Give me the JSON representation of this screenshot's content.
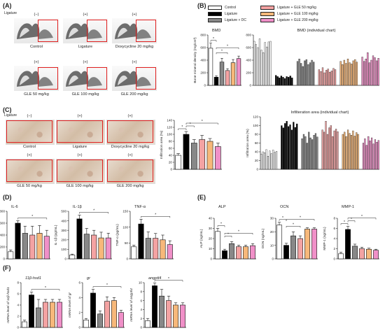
{
  "panels": {
    "A": {
      "letter": "(A)",
      "ligature_label": "Ligature",
      "row1": [
        {
          "sign": "(−)",
          "name": "Control"
        },
        {
          "sign": "(+)",
          "name": "Ligature"
        },
        {
          "sign": "(+)",
          "name": "Doxycycline 20 mg/kg"
        }
      ],
      "row2": [
        {
          "sign": "(+)",
          "name": "GLE 50 mg/kg"
        },
        {
          "sign": "(+)",
          "name": "GLE 100 mg/kg"
        },
        {
          "sign": "(+)",
          "name": "GLE 200 mg/kg"
        }
      ]
    },
    "B": {
      "letter": "(B)",
      "legend": [
        {
          "label": "Control",
          "color": "#ffffff"
        },
        {
          "label": "Ligature",
          "color": "#000000"
        },
        {
          "label": "Ligature + DC",
          "color": "#888888"
        },
        {
          "label": "Ligature + GLE 50 mg/kg",
          "color": "#f4a3a3"
        },
        {
          "label": "Ligature + GLE 100 mg/kg",
          "color": "#f7b87a"
        },
        {
          "label": "Ligature + GLE 200 mg/kg",
          "color": "#f090c8"
        }
      ]
    },
    "C": {
      "letter": "(C)",
      "ligature_label": "Ligature",
      "row1": [
        {
          "sign": "(−)",
          "name": "Control"
        },
        {
          "sign": "(+)",
          "name": "Ligature"
        },
        {
          "sign": "(+)",
          "name": "Doxycycline 20 mg/kg"
        }
      ],
      "row2": [
        {
          "sign": "(+)",
          "name": "GLE 50 mg/kg"
        },
        {
          "sign": "(+)",
          "name": "GLE 100 mg/kg"
        },
        {
          "sign": "(+)",
          "name": "GLE 200 mg/kg"
        }
      ]
    },
    "D": {
      "letter": "(D)"
    },
    "E": {
      "letter": "(E)"
    },
    "F": {
      "letter": "(F)"
    }
  },
  "colors": [
    "#ffffff",
    "#000000",
    "#888888",
    "#f4a3a3",
    "#f7b87a",
    "#f090c8"
  ],
  "chart_data": [
    {
      "id": "bmd",
      "type": "bar",
      "title": "BMD",
      "ylabel": "Bone mineral density (mg/cm³)",
      "ylim": [
        0,
        800
      ],
      "ticks": [
        0,
        200,
        400,
        600,
        800
      ],
      "values": [
        590,
        130,
        370,
        235,
        360,
        425
      ],
      "errors": [
        80,
        20,
        60,
        30,
        50,
        40
      ],
      "sig": [
        [
          0,
          1,
          "*"
        ],
        [
          1,
          3,
          "*"
        ],
        [
          1,
          5,
          "*"
        ]
      ]
    },
    {
      "id": "bmd_ind",
      "type": "bar",
      "title": "BMD (individual chart)",
      "ylim": [
        0,
        800
      ],
      "ticks": [
        0,
        200,
        400,
        600,
        800
      ],
      "groups": [
        [
          700,
          650,
          600,
          740,
          560,
          520,
          680,
          610,
          690,
          700
        ],
        [
          160,
          140,
          120,
          150,
          130,
          110,
          140,
          130,
          150,
          120
        ],
        [
          380,
          420,
          350,
          300,
          390,
          410,
          330,
          360,
          400,
          370
        ],
        [
          250,
          220,
          280,
          200,
          240,
          260,
          210,
          230,
          270,
          250
        ],
        [
          380,
          330,
          400,
          350,
          420,
          360,
          340,
          390,
          410,
          370
        ],
        [
          450,
          380,
          420,
          520,
          360,
          400,
          470,
          440,
          390,
          430
        ]
      ]
    },
    {
      "id": "infil",
      "type": "bar",
      "ylabel": "Infiltration area (%)",
      "ylim": [
        0,
        140
      ],
      "ticks": [
        0,
        20,
        40,
        60,
        80,
        100,
        120,
        140
      ],
      "values": [
        40,
        100,
        75,
        85,
        80,
        65
      ],
      "errors": [
        5,
        8,
        10,
        12,
        8,
        10
      ],
      "sig": [
        [
          0,
          1,
          "*"
        ],
        [
          1,
          2,
          "*"
        ],
        [
          1,
          5,
          "*"
        ]
      ]
    },
    {
      "id": "infil_ind",
      "type": "bar",
      "title": "Infilteration area (individual chart)",
      "ylim": [
        0,
        120
      ],
      "ticks": [
        0,
        20,
        40,
        60,
        80,
        100,
        120
      ],
      "groups": [
        [
          35,
          40,
          38,
          45,
          30,
          42,
          36,
          44,
          39,
          41
        ],
        [
          100,
          95,
          105,
          110,
          98,
          102,
          90,
          108,
          96,
          104
        ],
        [
          70,
          80,
          75,
          60,
          85,
          72,
          68,
          78,
          82,
          74
        ],
        [
          90,
          85,
          110,
          80,
          95,
          100,
          75,
          88,
          92,
          86
        ],
        [
          80,
          85,
          75,
          90,
          82,
          78,
          88,
          76,
          84,
          80
        ],
        [
          60,
          70,
          55,
          75,
          65,
          72,
          58,
          68,
          62,
          66
        ]
      ]
    },
    {
      "id": "il6",
      "type": "bar",
      "title": "IL-6",
      "ylabel": "IL-6 (pg/mL)",
      "ylim": [
        0,
        800
      ],
      "ticks": [
        0,
        200,
        400,
        600,
        800
      ],
      "values": [
        120,
        600,
        430,
        400,
        430,
        380
      ],
      "errors": [
        30,
        40,
        120,
        150,
        130,
        100
      ],
      "sig": [
        [
          1,
          5,
          "*"
        ]
      ]
    },
    {
      "id": "il1b",
      "type": "bar",
      "title": "IL-1β",
      "ylabel": "IL-1β (pg/mL)",
      "ylim": [
        0,
        500
      ],
      "ticks": [
        0,
        100,
        200,
        300,
        400,
        500
      ],
      "values": [
        40,
        420,
        260,
        250,
        220,
        220
      ],
      "errors": [
        10,
        40,
        60,
        50,
        60,
        50
      ],
      "sig": [
        [
          1,
          5,
          "*"
        ]
      ]
    },
    {
      "id": "tnfa",
      "type": "bar",
      "title": "TNF-α",
      "ylabel": "TNF-α (pg/mL)",
      "ylim": [
        0,
        150
      ],
      "ticks": [
        0,
        50,
        100,
        150
      ],
      "values": [
        38,
        110,
        65,
        65,
        60,
        45
      ],
      "errors": [
        5,
        15,
        20,
        15,
        15,
        12
      ],
      "sig": [
        [
          1,
          5,
          "*"
        ]
      ]
    },
    {
      "id": "alp",
      "type": "bar",
      "title": "ALP",
      "ylabel": "ALP (ng/mL)",
      "ylim": [
        0,
        40
      ],
      "ticks": [
        0,
        10,
        20,
        30,
        40
      ],
      "values": [
        27,
        8,
        15,
        12,
        12,
        13
      ],
      "errors": [
        3,
        1.5,
        2,
        1.5,
        1.5,
        2
      ],
      "sig": [
        [
          0,
          1,
          "*"
        ],
        [
          1,
          2,
          "*"
        ],
        [
          1,
          5,
          "*"
        ]
      ]
    },
    {
      "id": "ocn",
      "type": "bar",
      "title": "OCN",
      "ylabel": "OCN (ng/mL)",
      "ylim": [
        0,
        30
      ],
      "ticks": [
        0,
        10,
        20,
        30
      ],
      "values": [
        25,
        10,
        17,
        15,
        22,
        22
      ],
      "errors": [
        2,
        1.5,
        3,
        2,
        1,
        1
      ],
      "sig": [
        [
          0,
          1,
          "*"
        ],
        [
          1,
          3,
          "*"
        ],
        [
          1,
          5,
          "*"
        ]
      ]
    },
    {
      "id": "mmp1",
      "type": "bar",
      "title": "MMP-1",
      "ylabel": "MMP-1 (ng/mL)",
      "ylim": [
        0,
        8
      ],
      "ticks": [
        0,
        2,
        4,
        6,
        8
      ],
      "values": [
        1,
        5.8,
        2.5,
        2,
        1.9,
        1.7
      ],
      "errors": [
        0.3,
        0.6,
        0.4,
        0.3,
        0.2,
        0.2
      ],
      "sig": [
        [
          0,
          1,
          "*"
        ],
        [
          1,
          2,
          "*"
        ],
        [
          1,
          5,
          "*"
        ]
      ]
    },
    {
      "id": "hsd",
      "type": "bar",
      "title": "11β-hsd1",
      "ylabel": "mRNA level of 11β-hsd1",
      "ylim": [
        0,
        8
      ],
      "ticks": [
        0,
        2,
        4,
        6,
        8
      ],
      "values": [
        1,
        5.8,
        3.5,
        4.5,
        4.5,
        4.5
      ],
      "errors": [
        0.3,
        0.5,
        1.5,
        0.5,
        0.5,
        0.5
      ],
      "sig": [
        [
          1,
          5,
          "*"
        ]
      ]
    },
    {
      "id": "gr",
      "type": "bar",
      "title": "gr",
      "ylabel": "mRNA level of gr",
      "ylim": [
        0,
        6
      ],
      "ticks": [
        0,
        2,
        4,
        6
      ],
      "values": [
        1,
        4.6,
        1.8,
        3.5,
        3.6,
        2
      ],
      "errors": [
        0.2,
        0.5,
        0.4,
        0.6,
        0.4,
        0.3
      ],
      "sig": [
        [
          1,
          5,
          "*"
        ]
      ]
    },
    {
      "id": "angptl4",
      "type": "bar",
      "title": "angptl4",
      "ylabel": "mRNA level of angptl4",
      "ylim": [
        0,
        10
      ],
      "ticks": [
        0,
        2,
        4,
        6,
        8,
        10
      ],
      "values": [
        1.5,
        9.3,
        7,
        6,
        5,
        5
      ],
      "errors": [
        0.5,
        0.6,
        1.5,
        1,
        0.5,
        0.5
      ],
      "sig": [
        [
          1,
          5,
          "*"
        ]
      ]
    }
  ]
}
